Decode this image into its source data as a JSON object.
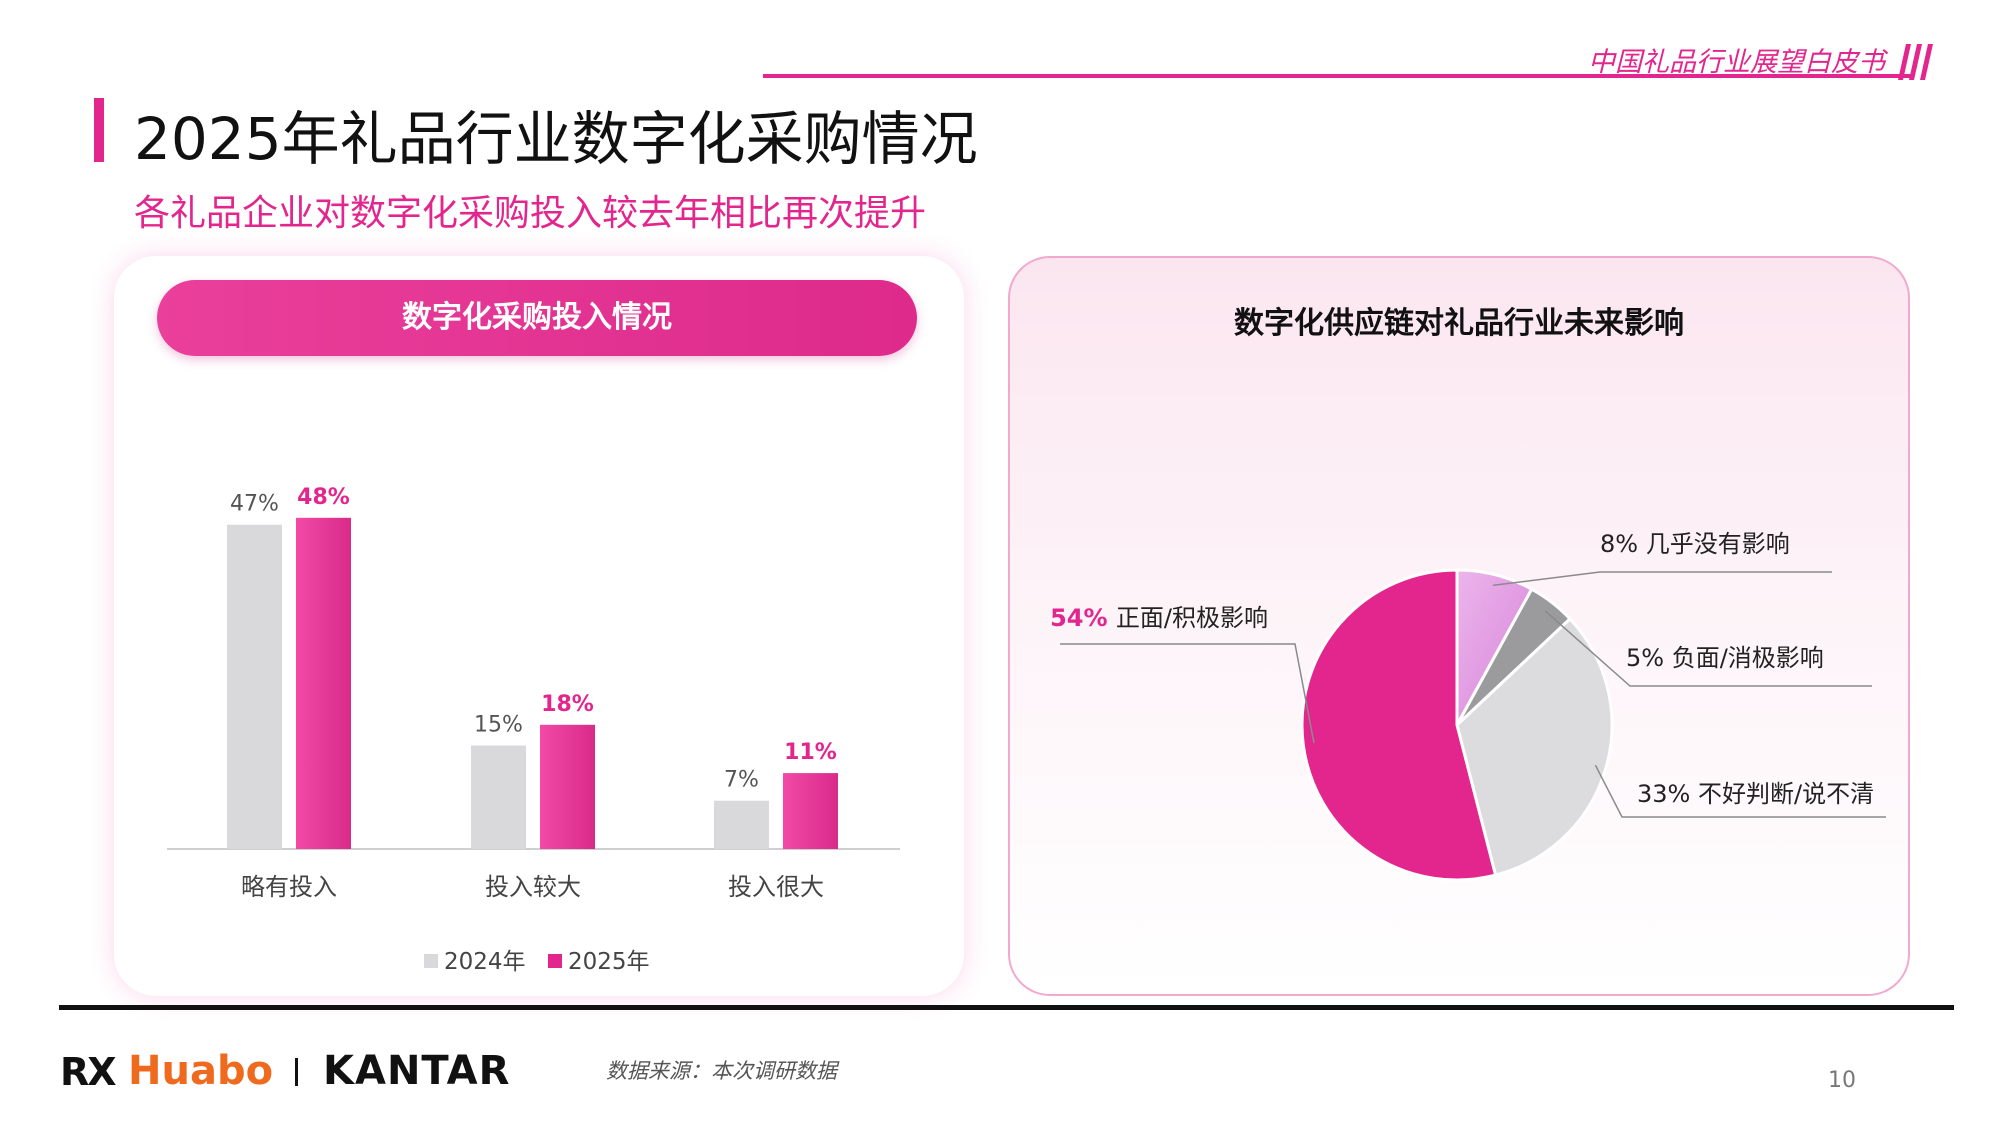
{
  "header": {
    "doc_series": "中国礼品行业展望白皮书",
    "title": "2025年礼品行业数字化采购情况",
    "subtitle": "各礼品企业对数字化采购投入较去年相比再次提升"
  },
  "colors": {
    "accent": "#e2268e",
    "gray_bar": "#d9d9db",
    "light_pink": "#e8a6e6",
    "dark_gray": "#9b9b9d",
    "light_gray": "#dcdcde"
  },
  "chart_data": [
    {
      "type": "bar",
      "title": "数字化采购投入情况",
      "categories": [
        "略有投入",
        "投入较大",
        "投入很大"
      ],
      "series": [
        {
          "name": "2024年",
          "values": [
            47,
            15,
            7
          ],
          "labels": [
            "47%",
            "15%",
            "7%"
          ]
        },
        {
          "name": "2025年",
          "values": [
            48,
            18,
            11
          ],
          "labels": [
            "48%",
            "18%",
            "11%"
          ]
        }
      ],
      "ylim": [
        0,
        50
      ],
      "legend": "bottom"
    },
    {
      "type": "pie",
      "title": "数字化供应链对礼品行业未来影响",
      "slices": [
        {
          "label": "几乎没有影响",
          "value": 8,
          "pct_label": "8%"
        },
        {
          "label": "负面/消极影响",
          "value": 5,
          "pct_label": "5%"
        },
        {
          "label": "不好判断/说不清",
          "value": 33,
          "pct_label": "33%"
        },
        {
          "label": "正面/积极影响",
          "value": 54,
          "pct_label": "54%"
        }
      ]
    }
  ],
  "footer": {
    "logo_rx": "RX",
    "logo_huabo": "Huabo",
    "logo_kantar": "KANTAR",
    "source": "数据来源：本次调研数据",
    "page_number": "10"
  }
}
